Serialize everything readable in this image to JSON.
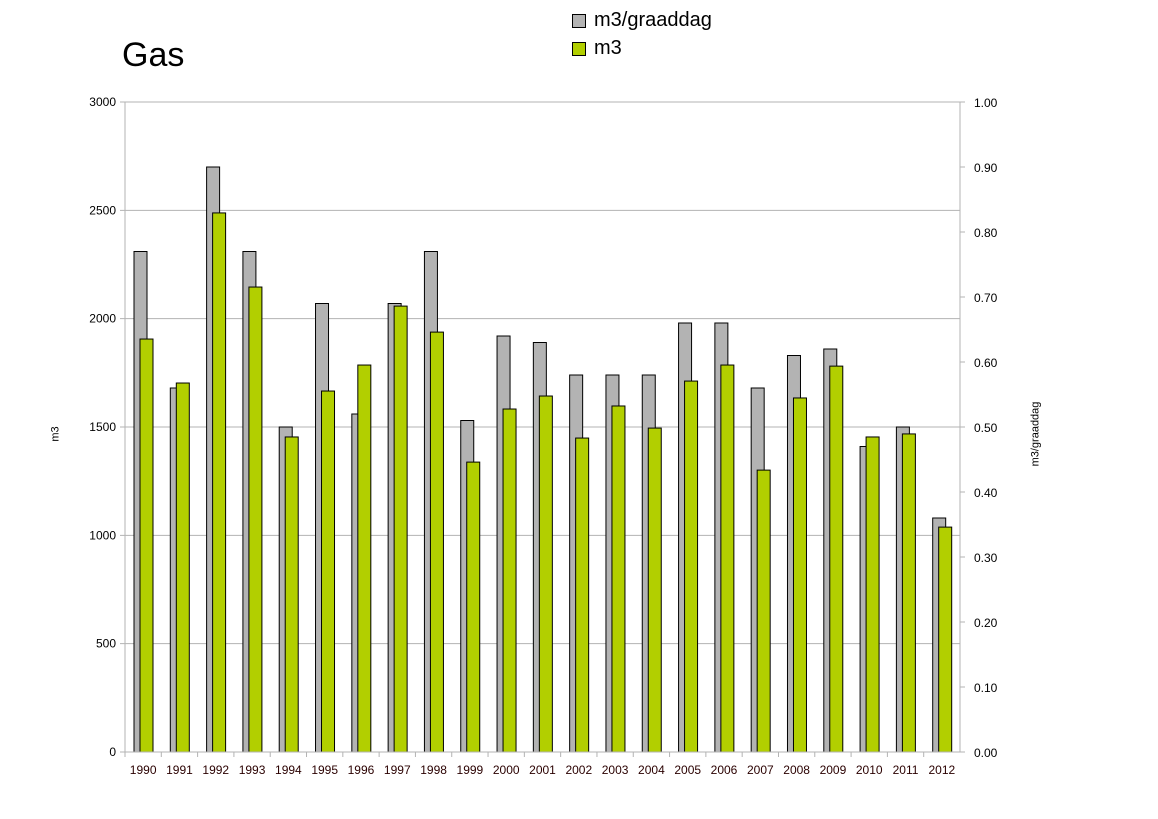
{
  "chart_data": {
    "type": "bar",
    "title": "Gas",
    "categories": [
      "1990",
      "1991",
      "1992",
      "1993",
      "1994",
      "1995",
      "1996",
      "1997",
      "1998",
      "1999",
      "2000",
      "2001",
      "2002",
      "2003",
      "2004",
      "2005",
      "2006",
      "2007",
      "2008",
      "2009",
      "2010",
      "2011",
      "2012"
    ],
    "series": [
      {
        "name": "m3/graaddag",
        "axis": "right",
        "color": "#b3b3b3",
        "values": [
          0.77,
          0.56,
          0.9,
          0.77,
          0.5,
          0.69,
          0.52,
          0.69,
          0.77,
          0.51,
          0.64,
          0.63,
          0.58,
          0.58,
          0.58,
          0.66,
          0.66,
          0.56,
          0.61,
          0.62,
          0.47,
          0.5,
          0.36
        ]
      },
      {
        "name": "m3",
        "axis": "left",
        "color": "#b2cf00",
        "values": [
          1906,
          1703,
          2488,
          2146,
          1454,
          1666,
          1786,
          2058,
          1938,
          1338,
          1583,
          1643,
          1449,
          1597,
          1495,
          1712,
          1786,
          1301,
          1634,
          1781,
          1454,
          1468,
          1038
        ]
      }
    ],
    "ylabel": "m3",
    "y2label": "m3/graaddag",
    "ylim": [
      0,
      3000
    ],
    "y2lim": [
      0,
      1.0
    ],
    "yticks": [
      "0",
      "500",
      "1000",
      "1500",
      "2000",
      "2500",
      "3000"
    ],
    "y2ticks": [
      "0.00",
      "0.10",
      "0.20",
      "0.30",
      "0.40",
      "0.50",
      "0.60",
      "0.70",
      "0.80",
      "0.90",
      "1.00"
    ],
    "grid": true,
    "legend": "top-center"
  }
}
